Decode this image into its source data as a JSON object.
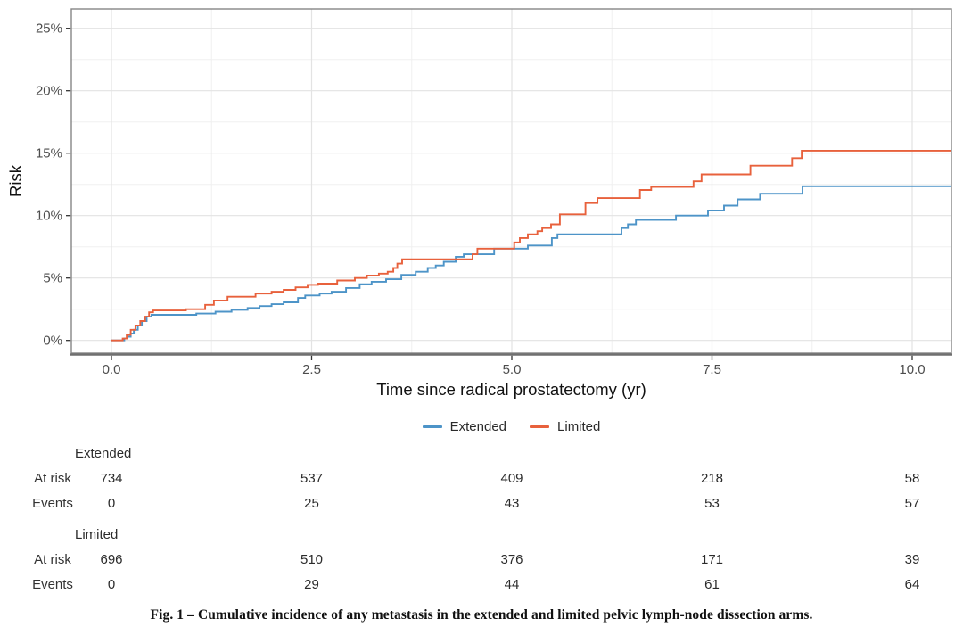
{
  "figure": {
    "caption": "Fig. 1 – Cumulative incidence of any metastasis in the extended and limited pelvic lymph-node dissection arms."
  },
  "chart_data": {
    "type": "line",
    "subtype": "step-cumulative-incidence",
    "title": "",
    "xlabel": "Time since radical prostatectomy (yr)",
    "ylabel": "Risk",
    "xlim": [
      -0.5,
      10.5
    ],
    "ylim": [
      -1,
      26.5
    ],
    "x_ticks": [
      0.0,
      2.5,
      5.0,
      7.5,
      10.0
    ],
    "x_tick_labels": [
      "0.0",
      "2.5",
      "5.0",
      "7.5",
      "10.0"
    ],
    "y_ticks": [
      0,
      5,
      10,
      15,
      20,
      25
    ],
    "y_tick_labels": [
      "0%",
      "5%",
      "10%",
      "15%",
      "20%",
      "25%"
    ],
    "x_minor_ticks": [
      1.25,
      3.75,
      6.25,
      8.75
    ],
    "y_minor_ticks": [
      2.5,
      7.5,
      12.5,
      17.5,
      22.5
    ],
    "grid": true,
    "legend_position": "bottom-center",
    "colors": {
      "extended": "#4d94c8",
      "limited": "#e8613c"
    },
    "series": [
      {
        "name": "Extended",
        "color": "#4d94c8",
        "points_x_yr_y_pct": [
          [
            0,
            0
          ],
          [
            0.16,
            0.15
          ],
          [
            0.2,
            0.3
          ],
          [
            0.24,
            0.55
          ],
          [
            0.28,
            0.85
          ],
          [
            0.33,
            1.2
          ],
          [
            0.38,
            1.55
          ],
          [
            0.44,
            1.9
          ],
          [
            0.5,
            2.05
          ],
          [
            1.06,
            2.15
          ],
          [
            1.3,
            2.3
          ],
          [
            1.5,
            2.45
          ],
          [
            1.7,
            2.6
          ],
          [
            1.85,
            2.75
          ],
          [
            2.0,
            2.9
          ],
          [
            2.15,
            3.05
          ],
          [
            2.33,
            3.4
          ],
          [
            2.42,
            3.6
          ],
          [
            2.6,
            3.75
          ],
          [
            2.75,
            3.9
          ],
          [
            2.93,
            4.2
          ],
          [
            3.1,
            4.5
          ],
          [
            3.25,
            4.7
          ],
          [
            3.43,
            4.9
          ],
          [
            3.62,
            5.25
          ],
          [
            3.8,
            5.5
          ],
          [
            3.95,
            5.8
          ],
          [
            4.05,
            6.0
          ],
          [
            4.15,
            6.3
          ],
          [
            4.3,
            6.7
          ],
          [
            4.4,
            6.9
          ],
          [
            4.78,
            7.35
          ],
          [
            5.2,
            7.6
          ],
          [
            5.5,
            8.2
          ],
          [
            5.57,
            8.5
          ],
          [
            6.37,
            9.0
          ],
          [
            6.45,
            9.3
          ],
          [
            6.55,
            9.65
          ],
          [
            7.05,
            10.0
          ],
          [
            7.45,
            10.4
          ],
          [
            7.65,
            10.8
          ],
          [
            7.82,
            11.3
          ],
          [
            8.1,
            11.75
          ],
          [
            8.63,
            12.35
          ],
          [
            10.55,
            12.35
          ]
        ]
      },
      {
        "name": "Limited",
        "color": "#e8613c",
        "points_x_yr_y_pct": [
          [
            0,
            0
          ],
          [
            0.14,
            0.15
          ],
          [
            0.19,
            0.45
          ],
          [
            0.24,
            0.85
          ],
          [
            0.3,
            1.2
          ],
          [
            0.36,
            1.55
          ],
          [
            0.42,
            1.9
          ],
          [
            0.47,
            2.25
          ],
          [
            0.52,
            2.4
          ],
          [
            0.93,
            2.5
          ],
          [
            1.17,
            2.85
          ],
          [
            1.28,
            3.2
          ],
          [
            1.45,
            3.5
          ],
          [
            1.8,
            3.75
          ],
          [
            2.0,
            3.9
          ],
          [
            2.15,
            4.05
          ],
          [
            2.3,
            4.25
          ],
          [
            2.45,
            4.45
          ],
          [
            2.58,
            4.55
          ],
          [
            2.82,
            4.8
          ],
          [
            3.04,
            5.0
          ],
          [
            3.19,
            5.2
          ],
          [
            3.34,
            5.35
          ],
          [
            3.45,
            5.5
          ],
          [
            3.52,
            5.8
          ],
          [
            3.57,
            6.15
          ],
          [
            3.63,
            6.5
          ],
          [
            4.51,
            6.9
          ],
          [
            4.57,
            7.35
          ],
          [
            5.03,
            7.85
          ],
          [
            5.1,
            8.2
          ],
          [
            5.2,
            8.5
          ],
          [
            5.32,
            8.75
          ],
          [
            5.38,
            9.0
          ],
          [
            5.49,
            9.3
          ],
          [
            5.6,
            10.1
          ],
          [
            5.92,
            11.0
          ],
          [
            6.07,
            11.4
          ],
          [
            6.6,
            12.05
          ],
          [
            6.74,
            12.3
          ],
          [
            7.27,
            12.75
          ],
          [
            7.37,
            13.3
          ],
          [
            7.98,
            14.0
          ],
          [
            8.5,
            14.6
          ],
          [
            8.62,
            15.2
          ],
          [
            10.55,
            15.2
          ]
        ]
      }
    ]
  },
  "risk_table": {
    "time_points": [
      0.0,
      2.5,
      5.0,
      7.5,
      10.0
    ],
    "row_labels": {
      "at_risk": "At risk",
      "events": "Events"
    },
    "groups": [
      {
        "name": "Extended",
        "at_risk": [
          "734",
          "537",
          "409",
          "218",
          "58"
        ],
        "events": [
          "0",
          "25",
          "43",
          "53",
          "57"
        ]
      },
      {
        "name": "Limited",
        "at_risk": [
          "696",
          "510",
          "376",
          "171",
          "39"
        ],
        "events": [
          "0",
          "29",
          "44",
          "61",
          "64"
        ]
      }
    ]
  }
}
